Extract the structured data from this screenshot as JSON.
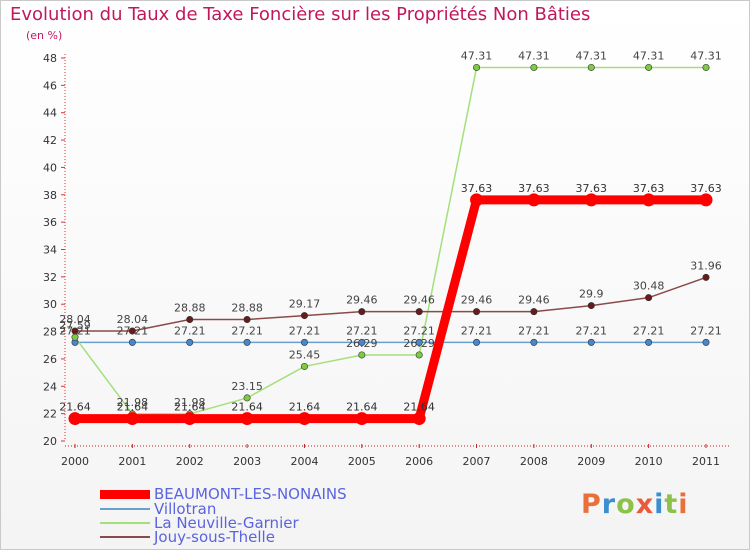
{
  "header": {
    "title": "Evolution du Taux de Taxe Foncière sur les Propriétés Non Bâties",
    "unit": "(en %)"
  },
  "logo": {
    "text": "Proxiti",
    "colors": [
      "#e8703a",
      "#3a8fd0",
      "#8bc34a",
      "#e85a3a",
      "#3a8fd0",
      "#8bc34a",
      "#e8703a"
    ]
  },
  "chart_data": {
    "type": "line",
    "title": "Evolution du Taux de Taxe Foncière sur les Propriétés Non Bâties",
    "ylabel": "(en %)",
    "xlabel": "",
    "ylim": [
      20,
      48
    ],
    "ytick_step": 2,
    "x": [
      "2000",
      "2001",
      "2002",
      "2003",
      "2004",
      "2005",
      "2006",
      "2007",
      "2008",
      "2009",
      "2010",
      "2011"
    ],
    "series": [
      {
        "name": "BEAUMONT-LES-NONAINS",
        "color": "#ff0000",
        "marker": "#ff0000",
        "labelColor": "#333333",
        "values": [
          21.64,
          21.64,
          21.64,
          21.64,
          21.64,
          21.64,
          21.64,
          37.63,
          37.63,
          37.63,
          37.63,
          37.63
        ],
        "labels": [
          "21.64",
          "21.64",
          "21.64",
          "21.64",
          "21.64",
          "21.64",
          "21.64",
          "37.63",
          "37.63",
          "37.63",
          "37.63",
          "37.63"
        ]
      },
      {
        "name": "Villotran",
        "color": "#6b9fd0",
        "marker": "#4a86c8",
        "labelColor": "#444444",
        "values": [
          27.21,
          27.21,
          27.21,
          27.21,
          27.21,
          27.21,
          27.21,
          27.21,
          27.21,
          27.21,
          27.21,
          27.21
        ],
        "labels": [
          "27.21",
          "27.21",
          "27.21",
          "27.21",
          "27.21",
          "27.21",
          "27.21",
          "27.21",
          "27.21",
          "27.21",
          "27.21",
          "27.21"
        ]
      },
      {
        "name": "La Neuville-Garnier",
        "color": "#a3e07a",
        "marker": "#7ccc3f",
        "labelColor": "#444444",
        "values": [
          27.59,
          21.98,
          21.98,
          23.15,
          25.45,
          26.29,
          26.29,
          47.31,
          47.31,
          47.31,
          47.31,
          47.31
        ],
        "labels": [
          "27.59",
          "21.98",
          "21.98",
          "23.15",
          "25.45",
          "26.29",
          "26.29",
          "47.31",
          "47.31",
          "47.31",
          "47.31",
          "47.31"
        ]
      },
      {
        "name": "Jouy-sous-Thelle",
        "color": "#8b4a4a",
        "marker": "#6b1a1a",
        "labelColor": "#444444",
        "values": [
          28.04,
          28.04,
          28.88,
          28.88,
          29.17,
          29.46,
          29.46,
          29.46,
          29.46,
          29.9,
          30.48,
          31.96
        ],
        "labels": [
          "28.04",
          "28.04",
          "28.88",
          "28.88",
          "29.17",
          "29.46",
          "29.46",
          "29.46",
          "29.46",
          "29.9",
          "30.48",
          "31.96"
        ]
      }
    ],
    "legend": {
      "position": "bottom-left"
    },
    "grid": false
  }
}
